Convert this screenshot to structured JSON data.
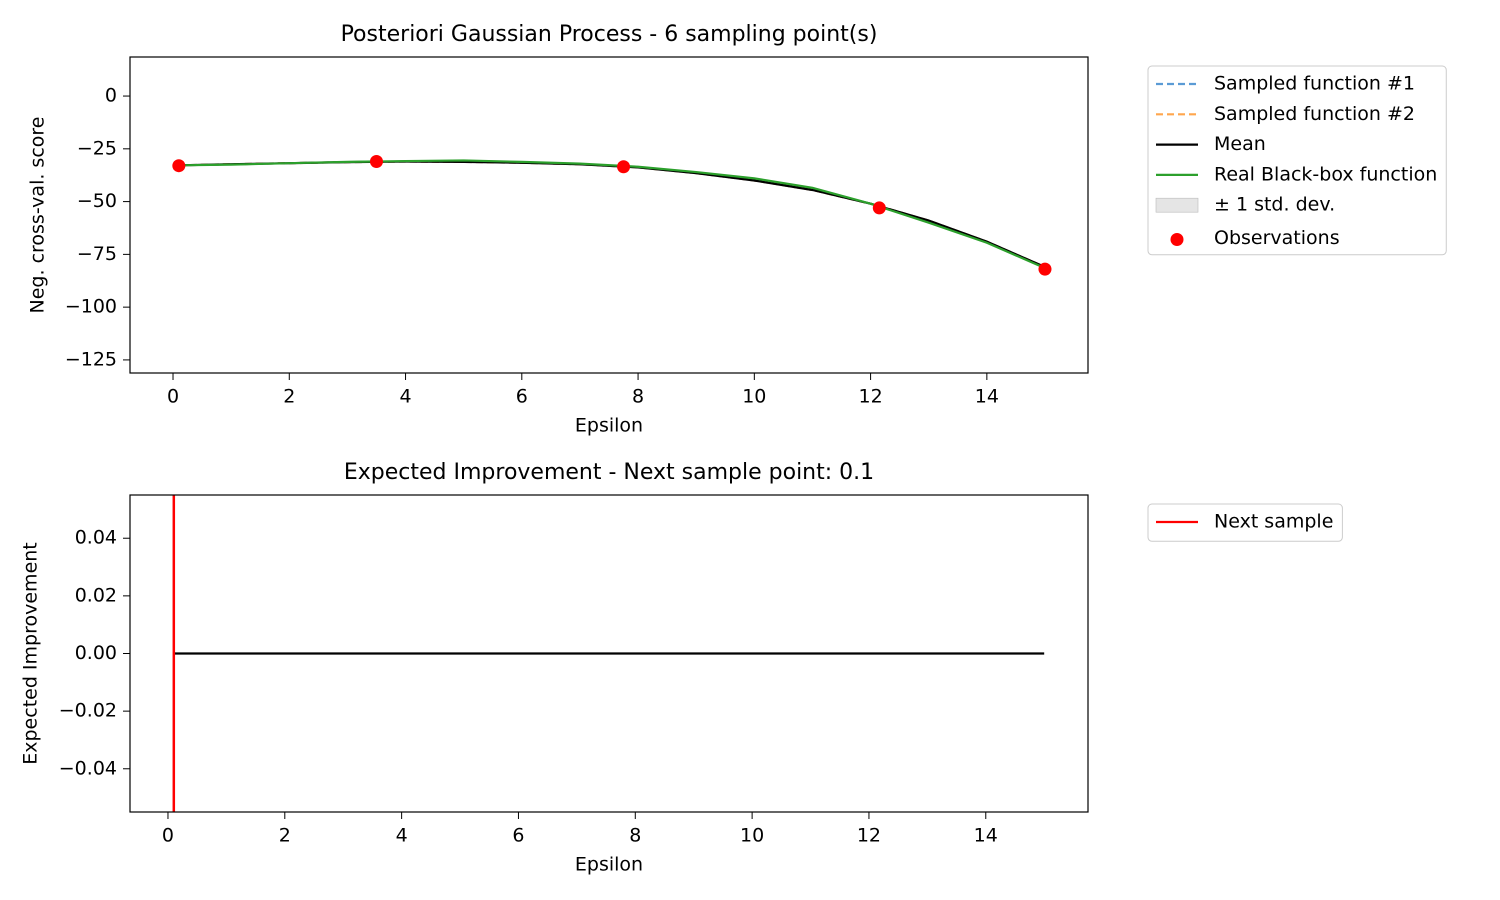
{
  "chart_data": [
    {
      "type": "line",
      "title": "Posteriori Gaussian Process - 6 sampling point(s)",
      "xlabel": "Epsilon",
      "ylabel": "Neg. cross-val. score",
      "xlim": [
        -0.74,
        15.74
      ],
      "ylim": [
        -131.2,
        18.5
      ],
      "xticks": [
        0,
        2,
        4,
        6,
        8,
        10,
        12,
        14
      ],
      "yticks": [
        0,
        {
          "value": -25,
          "label": "−25"
        },
        {
          "value": -50,
          "label": "−50"
        },
        {
          "value": -75,
          "label": "−75"
        },
        {
          "value": -100,
          "label": "−100"
        },
        {
          "value": -125,
          "label": "−125"
        }
      ],
      "x": [
        0.1,
        1,
        2,
        3,
        4,
        5,
        6,
        7,
        8,
        9,
        10,
        11,
        12,
        13,
        14,
        15
      ],
      "series": [
        {
          "name": "Sampled function #1",
          "style": "dashed",
          "color": "#5b9bd5",
          "values": [
            -32.8,
            -32.3,
            -31.8,
            -31.3,
            -31.0,
            -31.2,
            -31.6,
            -32.3,
            -33.8,
            -36.5,
            -40,
            -44.5,
            -51,
            -59,
            -69,
            -81
          ]
        },
        {
          "name": "Sampled function #2",
          "style": "dashed",
          "color": "#ffa64d",
          "values": [
            -32.8,
            -32.3,
            -31.8,
            -31.3,
            -31.0,
            -31.2,
            -31.6,
            -32.3,
            -33.8,
            -36.5,
            -40,
            -44.5,
            -51,
            -59,
            -69,
            -81
          ]
        },
        {
          "name": "± 1 std. dev.",
          "style": "band",
          "color": "#e5e5e5",
          "lower": [
            -33.1,
            -32.6,
            -32.1,
            -31.6,
            -31.3,
            -31.5,
            -31.9,
            -32.6,
            -34.1,
            -36.8,
            -40.3,
            -44.8,
            -51.3,
            -59.3,
            -69.3,
            -81.3
          ],
          "upper": [
            -32.5,
            -32.0,
            -31.5,
            -31.0,
            -30.7,
            -30.9,
            -31.3,
            -32.0,
            -33.5,
            -36.2,
            -39.7,
            -44.2,
            -50.7,
            -58.7,
            -68.7,
            -80.7
          ]
        },
        {
          "name": "Mean",
          "style": "line",
          "color": "#000000",
          "values": [
            -32.8,
            -32.3,
            -31.8,
            -31.3,
            -31.0,
            -31.2,
            -31.6,
            -32.3,
            -33.8,
            -36.5,
            -40,
            -44.5,
            -51,
            -59,
            -69,
            -81
          ]
        },
        {
          "name": "Real Black-box function",
          "style": "line",
          "color": "#2ca02c",
          "values": [
            -32.8,
            -32.5,
            -31.8,
            -31.2,
            -30.8,
            -30.5,
            -31.2,
            -32,
            -33.5,
            -36,
            -39,
            -43.5,
            -51,
            -60,
            -69.5,
            -81.5
          ]
        },
        {
          "name": "Observations",
          "style": "scatter",
          "color": "#ff0000",
          "x": [
            0.1,
            3.5,
            7.75,
            12.15,
            15
          ],
          "values": [
            -33,
            -31,
            -33.5,
            -53,
            -82
          ]
        }
      ],
      "legend_order": [
        0,
        1,
        3,
        4,
        2,
        5
      ]
    },
    {
      "type": "line",
      "title": "Expected Improvement - Next sample point: 0.1",
      "xlabel": "Epsilon",
      "ylabel": "Expected Improvement",
      "xlim": [
        -0.65,
        15.75
      ],
      "ylim": [
        -0.055,
        0.055
      ],
      "xticks": [
        0,
        2,
        4,
        6,
        8,
        10,
        12,
        14
      ],
      "yticks": [
        0.04,
        0.02,
        {
          "value": 0,
          "label": "0.00"
        },
        {
          "value": -0.02,
          "label": "−0.02"
        },
        {
          "value": -0.04,
          "label": "−0.04"
        }
      ],
      "x": [
        0.1,
        15
      ],
      "series": [
        {
          "style": "line",
          "color": "#000000",
          "values": [
            0,
            0
          ]
        }
      ],
      "vline": {
        "name": "Next sample",
        "x": 0.1,
        "color": "#ff0000"
      },
      "legend_order": []
    }
  ]
}
